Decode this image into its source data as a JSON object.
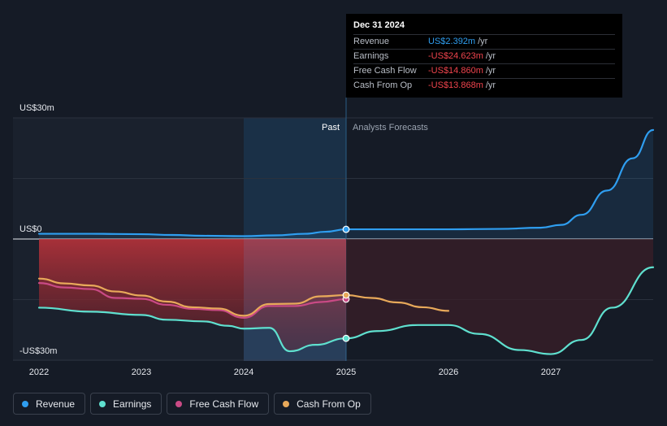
{
  "tooltip": {
    "date": "Dec 31 2024",
    "rows": [
      {
        "label": "Revenue",
        "value": "US$2.392m",
        "unit": "/yr",
        "color": "#2f9ef0"
      },
      {
        "label": "Earnings",
        "value": "-US$24.623m",
        "unit": "/yr",
        "color": "#f0444d"
      },
      {
        "label": "Free Cash Flow",
        "value": "-US$14.860m",
        "unit": "/yr",
        "color": "#f0444d"
      },
      {
        "label": "Cash From Op",
        "value": "-US$13.868m",
        "unit": "/yr",
        "color": "#f0444d"
      }
    ]
  },
  "zones": {
    "past": "Past",
    "forecast": "Analysts Forecasts"
  },
  "legend": [
    {
      "label": "Revenue",
      "color": "#2f9ef0"
    },
    {
      "label": "Earnings",
      "color": "#5fe0cf"
    },
    {
      "label": "Free Cash Flow",
      "color": "#c94a85"
    },
    {
      "label": "Cash From Op",
      "color": "#e8a95a"
    }
  ],
  "chart_data": {
    "type": "line",
    "title": "",
    "xlabel": "",
    "ylabel": "",
    "y_tick_labels": [
      "US$30m",
      "US$0",
      "-US$30m"
    ],
    "y_ticks": [
      30,
      0,
      -30
    ],
    "ylim": [
      -30,
      30
    ],
    "xlim": [
      2022,
      2028.0
    ],
    "x_ticks": [
      2022,
      2023,
      2024,
      2025,
      2026,
      2027
    ],
    "x_tick_labels": [
      "2022",
      "2023",
      "2024",
      "2025",
      "2026",
      "2027"
    ],
    "past_end": 2025.0,
    "highlight_start": 2024.0,
    "series": [
      {
        "name": "Revenue",
        "color": "#2f9ef0",
        "x": [
          2022.0,
          2022.5,
          2023.0,
          2023.3,
          2023.6,
          2024.0,
          2024.3,
          2024.6,
          2024.8,
          2025.0,
          2025.5,
          2026.0,
          2026.5,
          2026.9,
          2027.1,
          2027.3,
          2027.55,
          2027.8,
          2028.0
        ],
        "y": [
          1.3,
          1.3,
          1.2,
          1.0,
          0.8,
          0.7,
          0.9,
          1.3,
          1.8,
          2.4,
          2.4,
          2.4,
          2.5,
          2.8,
          3.5,
          6.0,
          12.0,
          20.0,
          27.0
        ]
      },
      {
        "name": "Earnings",
        "color": "#5fe0cf",
        "x": [
          2022.0,
          2022.5,
          2023.0,
          2023.25,
          2023.6,
          2023.85,
          2024.0,
          2024.25,
          2024.45,
          2024.7,
          2025.0,
          2025.3,
          2025.7,
          2026.0,
          2026.3,
          2026.7,
          2027.0,
          2027.3,
          2027.6,
          2028.0
        ],
        "y": [
          -17.0,
          -18.0,
          -18.8,
          -20.0,
          -20.4,
          -21.5,
          -22.2,
          -22.0,
          -27.8,
          -26.2,
          -24.6,
          -22.8,
          -21.3,
          -21.3,
          -23.5,
          -27.5,
          -28.5,
          -25.0,
          -17.0,
          -7.0
        ]
      },
      {
        "name": "Free Cash Flow",
        "color": "#c94a85",
        "x": [
          2022.0,
          2022.25,
          2022.5,
          2022.75,
          2023.0,
          2023.25,
          2023.5,
          2023.75,
          2024.0,
          2024.25,
          2024.5,
          2024.75,
          2025.0
        ],
        "y": [
          -10.9,
          -12.0,
          -12.4,
          -14.6,
          -14.8,
          -16.3,
          -17.3,
          -17.6,
          -19.5,
          -16.6,
          -16.6,
          -15.6,
          -14.9
        ]
      },
      {
        "name": "Cash From Op",
        "color": "#e8a95a",
        "x": [
          2022.0,
          2022.25,
          2022.5,
          2022.75,
          2023.0,
          2023.25,
          2023.5,
          2023.75,
          2024.0,
          2024.25,
          2024.5,
          2024.75,
          2025.0,
          2025.25,
          2025.5,
          2025.75,
          2026.0
        ],
        "y": [
          -9.8,
          -11.0,
          -11.5,
          -13.0,
          -14.0,
          -15.5,
          -16.9,
          -17.2,
          -19.0,
          -16.1,
          -16.0,
          -14.2,
          -13.9,
          -14.6,
          -15.7,
          -16.9,
          -17.8
        ]
      }
    ]
  }
}
